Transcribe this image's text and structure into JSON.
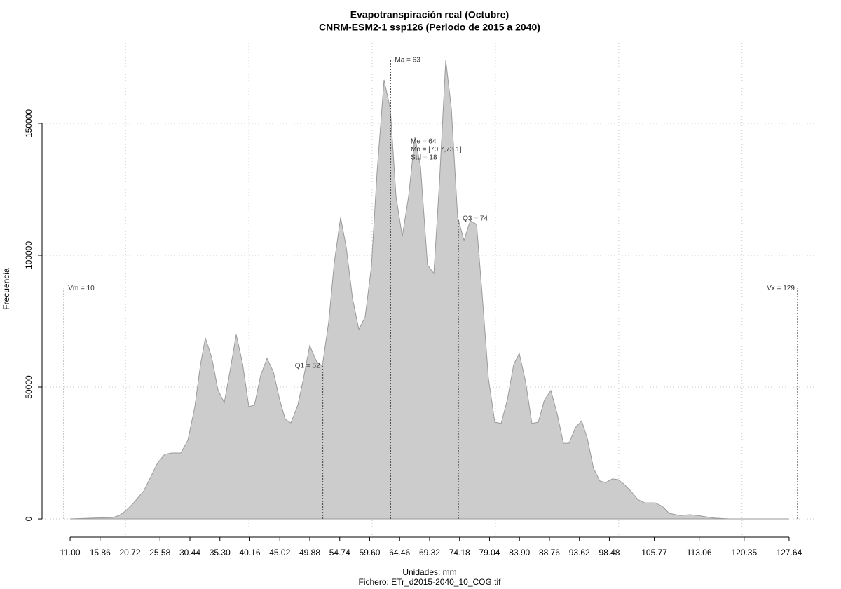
{
  "chart_data": {
    "type": "area",
    "title": "Evapotranspiración real (Octubre)",
    "subtitle": "CNRM-ESM2-1 ssp126 (Periodo de 2015 a 2040)",
    "x_label": "Unidades: mm",
    "y_label": "Frecuencia",
    "footer": "Fichero: ETr_d2015-2040_10_COG.tif",
    "color": "#cccccc",
    "grid": true,
    "xlim": [
      6.45,
      132.65
    ],
    "ylim": [
      -6900,
      180300
    ],
    "xticks": [
      {
        "value": 11.0,
        "label": "11.00"
      },
      {
        "value": 15.86,
        "label": "15.86"
      },
      {
        "value": 20.72,
        "label": "20.72"
      },
      {
        "value": 25.58,
        "label": "25.58"
      },
      {
        "value": 30.44,
        "label": "30.44"
      },
      {
        "value": 35.3,
        "label": "35.30"
      },
      {
        "value": 40.16,
        "label": "40.16"
      },
      {
        "value": 45.02,
        "label": "45.02"
      },
      {
        "value": 49.88,
        "label": "49.88"
      },
      {
        "value": 54.74,
        "label": "54.74"
      },
      {
        "value": 59.6,
        "label": "59.60"
      },
      {
        "value": 64.46,
        "label": "64.46"
      },
      {
        "value": 69.32,
        "label": "69.32"
      },
      {
        "value": 74.18,
        "label": "74.18"
      },
      {
        "value": 79.04,
        "label": "79.04"
      },
      {
        "value": 83.9,
        "label": "83.90"
      },
      {
        "value": 88.76,
        "label": "88.76"
      },
      {
        "value": 93.62,
        "label": "93.62"
      },
      {
        "value": 98.48,
        "label": "98.48"
      },
      {
        "value": 105.77,
        "label": "105.77"
      },
      {
        "value": 113.06,
        "label": "113.06"
      },
      {
        "value": 120.35,
        "label": "120.35"
      },
      {
        "value": 127.64,
        "label": "127.64"
      }
    ],
    "xgrid": [
      20,
      40,
      60,
      80,
      100,
      120
    ],
    "yticks": [
      0,
      50000,
      100000,
      150000
    ],
    "x": [
      11.0,
      14.41,
      17.82,
      18.96,
      20.1,
      21.24,
      22.94,
      25.22,
      26.35,
      27.49,
      28.96,
      30.1,
      31.24,
      32.15,
      32.94,
      33.97,
      34.99,
      36.01,
      36.92,
      37.95,
      38.97,
      39.99,
      40.9,
      41.92,
      42.95,
      43.97,
      44.99,
      45.9,
      46.81,
      47.94,
      48.85,
      49.87,
      51.01,
      51.92,
      52.94,
      53.86,
      54.88,
      55.79,
      56.81,
      57.84,
      58.86,
      59.88,
      60.8,
      61.93,
      62.96,
      63.87,
      64.89,
      65.91,
      66.94,
      67.85,
      68.98,
      70.01,
      70.92,
      71.94,
      72.85,
      73.87,
      74.9,
      75.92,
      76.94,
      77.85,
      78.87,
      79.9,
      80.92,
      81.94,
      82.96,
      83.87,
      84.9,
      85.92,
      86.94,
      87.97,
      88.99,
      90.01,
      91.03,
      91.94,
      92.97,
      93.99,
      94.9,
      95.92,
      96.94,
      97.85,
      98.99,
      99.9,
      100.81,
      101.95,
      103.09,
      104.22,
      105.93,
      107.07,
      108.2,
      109.91,
      111.62,
      113.32,
      115.6,
      117.87,
      127.64
    ],
    "values": [
      0,
      300,
      500,
      1300,
      3200,
      5900,
      10600,
      21300,
      24500,
      25000,
      25000,
      29800,
      42600,
      58500,
      68600,
      61200,
      48900,
      44100,
      55800,
      69900,
      59000,
      42600,
      43100,
      54500,
      60900,
      55800,
      45200,
      37800,
      36400,
      43100,
      53200,
      65700,
      59600,
      58000,
      74500,
      97300,
      114300,
      103100,
      83700,
      71800,
      76600,
      95700,
      131600,
      166500,
      155300,
      122300,
      107100,
      122300,
      144900,
      133500,
      96300,
      93100,
      127700,
      174000,
      155600,
      114400,
      105600,
      113100,
      111700,
      85100,
      53200,
      36700,
      36200,
      45200,
      58500,
      62800,
      51900,
      36200,
      36700,
      45200,
      48700,
      39900,
      28700,
      28700,
      34600,
      37200,
      30600,
      19100,
      14400,
      13800,
      15200,
      14900,
      13300,
      10600,
      7400,
      6100,
      6100,
      4800,
      2100,
      1300,
      1600,
      1100,
      300,
      0,
      0
    ],
    "markers": [
      {
        "label": "Vm = 10",
        "x": 10,
        "top": 87400,
        "side": "right"
      },
      {
        "label": "Q1 = 52",
        "x": 52,
        "top": 58000,
        "side": "left"
      },
      {
        "label": "Ma = 63",
        "x": 63,
        "top": 174000,
        "side": "right"
      },
      {
        "label": "Q3 = 74",
        "x": 74,
        "top": 113800,
        "side": "right"
      },
      {
        "label": "Vx = 129",
        "x": 129,
        "top": 87400,
        "side": "left"
      }
    ],
    "stats": [
      "Me = 64",
      "Mo = [70.7,73.1]",
      "Std = 18"
    ]
  }
}
